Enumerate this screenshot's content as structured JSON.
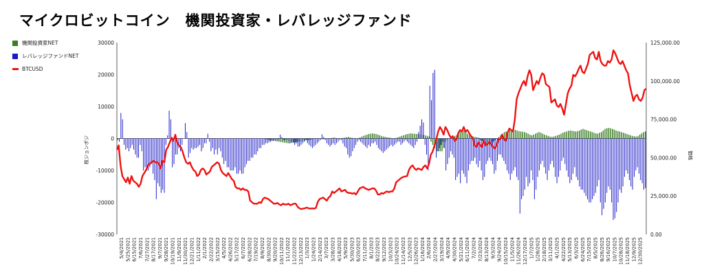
{
  "title": "マイクロビットコイン　機関投資家・レバレッジファンド",
  "colors": {
    "inst": "#3a7d22",
    "lev": "#1919c8",
    "price": "#ee1111",
    "axis": "#333333",
    "grid": "#cccccc"
  },
  "legend": {
    "inst": "機関投資家NET",
    "lev": "レバレッジファンドNET",
    "price": "BTCUSD"
  },
  "chart_data": {
    "type": "bar",
    "ylabel": "枚ジョンポジ",
    "y2label": "価格",
    "ylim": [
      -30000,
      30000
    ],
    "y2lim": [
      0,
      125000
    ],
    "yticks": [
      "30000",
      "20000",
      "10000",
      "0",
      "-10000",
      "-20000",
      "-30000"
    ],
    "y2ticks": [
      "125,000.00",
      "100,000.00",
      "75,000.00",
      "50,000.00",
      "25,000.00",
      "0.00"
    ],
    "x_tick_labels": [
      "5/4/2021",
      "5/25/2021",
      "6/15/2021",
      "7/6/2021",
      "7/27/2021",
      "8/17/2021",
      "9/7/2021",
      "9/28/2021",
      "10/19/2021",
      "11/9/2021",
      "11/30/2021",
      "12/21/2021",
      "1/11/2022",
      "2/1/2022",
      "2/22/2022",
      "3/15/2022",
      "4/5/2022",
      "4/26/2022",
      "5/17/2022",
      "6/7/2022",
      "6/28/2022",
      "7/19/2022",
      "8/9/2022",
      "8/30/2022",
      "9/20/2022",
      "10/11/2022",
      "11/1/2022",
      "11/22/2022",
      "12/13/2022",
      "1/3/2023",
      "1/24/2023",
      "2/14/2023",
      "3/7/2023",
      "3/28/2023",
      "4/18/2023",
      "5/9/2023",
      "5/30/2023",
      "6/20/2023",
      "7/11/2023",
      "8/1/2023",
      "8/22/2023",
      "9/12/2023",
      "10/3/2023",
      "10/24/2023",
      "11/14/2023",
      "12/5/2023",
      "12/26/2023",
      "1/16/2024",
      "2/6/2024",
      "2/27/2024",
      "3/19/2024",
      "4/9/2024",
      "4/30/2024",
      "5/21/2024",
      "6/11/2024",
      "7/2/2024",
      "7/23/2024",
      "8/13/2024",
      "9/3/2024",
      "9/24/2024",
      "10/15/2024",
      "11/5/2024",
      "11/26/2024",
      "12/17/2024",
      "1/7/2025",
      "1/28/2025",
      "2/18/2025",
      "3/11/2025",
      "4/1/2025",
      "4/22/2025",
      "5/13/2025",
      "6/3/2025",
      "6/24/2025",
      "7/15/2025",
      "8/5/2025",
      "8/26/2025",
      "9/16/2025",
      "10/7/2025",
      "10/28/2025",
      "11/18/2025",
      "12/9/2025",
      "12/30/2025"
    ],
    "series": [
      {
        "name": "機関投資家NET",
        "axis": "left",
        "values": [
          0,
          0,
          0,
          0,
          0,
          0,
          0,
          0,
          0,
          0,
          0,
          0,
          0,
          0,
          0,
          0,
          0,
          0,
          0,
          0,
          0,
          0,
          0,
          0,
          0,
          0,
          0,
          0,
          0,
          0,
          0,
          0,
          0,
          0,
          0,
          0,
          0,
          0,
          0,
          0,
          0,
          0,
          0,
          0,
          0,
          0,
          0,
          0,
          0,
          0,
          0,
          0,
          0,
          0,
          0,
          0,
          0,
          0,
          0,
          0,
          0,
          0,
          0,
          0,
          0,
          0,
          0,
          0,
          0,
          0,
          0,
          0,
          0,
          0,
          0,
          0,
          0,
          0,
          0,
          0,
          -200,
          -300,
          -400,
          -500,
          -600,
          -700,
          -800,
          -900,
          -1000,
          -1100,
          -1200,
          -1300,
          -1400,
          -1500,
          -1500,
          -1400,
          -1300,
          -1200,
          -1100,
          -1000,
          -900,
          -800,
          -700,
          -600,
          -500,
          -400,
          -300,
          -200,
          -100,
          0,
          -100,
          -200,
          -300,
          -200,
          -100,
          0,
          100,
          200,
          300,
          200,
          100,
          0,
          100,
          200,
          300,
          400,
          500,
          300,
          200,
          100,
          0,
          100,
          300,
          500,
          800,
          1000,
          1200,
          1400,
          1500,
          1600,
          1500,
          1400,
          1200,
          1000,
          800,
          600,
          500,
          400,
          300,
          200,
          100,
          0,
          200,
          400,
          600,
          800,
          1000,
          1200,
          1400,
          1500,
          1600,
          1500,
          1500,
          1400,
          1400,
          1300,
          1200,
          1100,
          1000,
          800,
          600,
          -1000,
          -2000,
          -3000,
          -4000,
          -4000,
          -4000,
          -4000,
          -3000,
          -1000,
          -500,
          0,
          200,
          500,
          800,
          1000,
          1500,
          2000,
          2500,
          2500,
          2000,
          1500,
          1000,
          800,
          600,
          500,
          400,
          300,
          -500,
          -800,
          -1000,
          -1500,
          -2000,
          -2000,
          -1500,
          -1000,
          -500,
          0,
          500,
          1000,
          1500,
          2000,
          2200,
          2400,
          2500,
          2600,
          2700,
          2700,
          2500,
          2300,
          2200,
          2100,
          2000,
          1800,
          1500,
          1200,
          1000,
          1200,
          1500,
          1800,
          2000,
          1800,
          1500,
          1200,
          1000,
          800,
          600,
          500,
          600,
          800,
          1000,
          1200,
          1500,
          1800,
          2000,
          2200,
          2400,
          2500,
          2400,
          2300,
          2200,
          2300,
          2500,
          2800,
          3000,
          2800,
          2600,
          2400,
          2200,
          2000,
          1800,
          1600,
          1500,
          1800,
          2000,
          2500,
          3000,
          3200,
          3300,
          3200,
          3000,
          2800,
          2500,
          2300,
          2200,
          2000,
          1800,
          1600,
          1400,
          1200,
          1000,
          800,
          700,
          600,
          800,
          1200,
          1600,
          2000,
          2200
        ]
      },
      {
        "name": "レバレッジファンドNET",
        "axis": "left",
        "values": [
          -500,
          -1000,
          8000,
          6000,
          -2000,
          -3500,
          -3000,
          -4000,
          -3000,
          -2000,
          -3500,
          -5000,
          -6000,
          -6000,
          -2000,
          -4000,
          -10000,
          -9000,
          -10000,
          -10000,
          -9000,
          -8000,
          -11000,
          -13000,
          -19000,
          -14000,
          -15000,
          -17000,
          -16000,
          -17000,
          -2000,
          1000,
          8700,
          6000,
          -9000,
          -8000,
          -5000,
          -5000,
          -3000,
          -4000,
          -2000,
          0,
          4800,
          2000,
          -6000,
          -4500,
          -3000,
          -3500,
          -3000,
          -3000,
          -2500,
          -2000,
          -4000,
          -3000,
          -1500,
          -1500,
          1500,
          -1000,
          -4000,
          -3000,
          -5000,
          -3500,
          -5000,
          -3000,
          -4000,
          -6000,
          -8000,
          -7000,
          -9000,
          -9000,
          -10000,
          -10000,
          -10000,
          -9000,
          -11000,
          -11000,
          -10000,
          -11000,
          -11000,
          -9000,
          -8000,
          -7000,
          -7000,
          -6000,
          -6000,
          -5000,
          -5000,
          -4000,
          -3000,
          -3000,
          -2000,
          -2000,
          -1500,
          -1500,
          -1200,
          -1000,
          -800,
          -700,
          -600,
          -600,
          -500,
          1200,
          500,
          -500,
          -500,
          -500,
          -800,
          -1500,
          -1000,
          -1200,
          -2000,
          -1500,
          -2500,
          -2500,
          -2000,
          -1500,
          -1000,
          -500,
          -1500,
          -2000,
          -2500,
          -3000,
          -2500,
          -2000,
          -1500,
          -1000,
          -500,
          1300,
          500,
          -500,
          -1500,
          -2000,
          -2500,
          -2000,
          -1500,
          -2000,
          -1500,
          -1000,
          -500,
          -500,
          -1500,
          -2500,
          -3000,
          -5000,
          -6000,
          -5500,
          -4000,
          -3000,
          -2000,
          -1000,
          -500,
          -1000,
          -1500,
          -2000,
          -2500,
          -3000,
          -2000,
          -2500,
          -1500,
          -1500,
          -1000,
          -2000,
          -3000,
          -3500,
          -4000,
          -4500,
          -4000,
          -3500,
          -3000,
          -2500,
          -2000,
          -2500,
          -2000,
          -1500,
          -1000,
          -1000,
          -2000,
          -1500,
          -1000,
          -500,
          -1000,
          -1500,
          -2000,
          -2500,
          -3000,
          -2000,
          -1000,
          2000,
          4000,
          6000,
          5000,
          -2000,
          -5000,
          -10000,
          16500,
          12000,
          20500,
          21500,
          -6000,
          -4000,
          -3000,
          -2000,
          -1000,
          -3000,
          -10000,
          -8000,
          -6000,
          -4000,
          -5000,
          -6000,
          -13000,
          -12000,
          -11000,
          -14000,
          -10000,
          -11000,
          -12000,
          -14000,
          -10000,
          -8000,
          -7000,
          -7000,
          -6000,
          -8000,
          -9000,
          -7000,
          -10000,
          -13000,
          -12000,
          -8000,
          -7000,
          -6000,
          -7000,
          -8000,
          -11000,
          -10000,
          -7000,
          -5000,
          -5000,
          -6000,
          -7000,
          -8000,
          -10000,
          -11000,
          -13000,
          -11000,
          -10000,
          -9000,
          -12000,
          -13000,
          -23500,
          -19000,
          -18000,
          -16000,
          -12000,
          -15000,
          -14000,
          -10000,
          -13000,
          -19000,
          -16000,
          -12000,
          -10000,
          -8000,
          -7000,
          -9000,
          -11000,
          -13000,
          -10000,
          -8000,
          -7000,
          -9000,
          -12000,
          -14000,
          -12000,
          -10000,
          -7000,
          -6000,
          -8000,
          -10000,
          -12000,
          -14000,
          -13000,
          -11000,
          -9000,
          -12000,
          -13000,
          -15000,
          -16000,
          -16000,
          -17000,
          -18000,
          -19000,
          -20000,
          -20000,
          -19000,
          -18000,
          -17000,
          -15000,
          -13000,
          -20000,
          -24000,
          -22000,
          -20000,
          -17000,
          -15000,
          -16000,
          -20000,
          -25500,
          -25000,
          -23000,
          -20000,
          -16000,
          -17000,
          -15000,
          -12000,
          -10000,
          -11000,
          -13000,
          -15000,
          -16000,
          -12000,
          -10000,
          -9000,
          -11000,
          -13000,
          -14000,
          -16000,
          -15500
        ]
      },
      {
        "name": "BTCUSD",
        "axis": "right",
        "values": [
          55000,
          58000,
          45000,
          38000,
          36000,
          34000,
          37000,
          33000,
          38000,
          35000,
          34000,
          33000,
          31000,
          33000,
          38000,
          40000,
          42000,
          45000,
          46000,
          47000,
          48000,
          47000,
          47000,
          46000,
          43000,
          48000,
          47000,
          55000,
          57000,
          60000,
          63000,
          61000,
          65000,
          60000,
          58000,
          57000,
          54000,
          50000,
          47000,
          46000,
          47000,
          44000,
          42000,
          41000,
          38000,
          39000,
          42000,
          43000,
          42000,
          39000,
          40000,
          41000,
          44000,
          45000,
          46000,
          47000,
          46000,
          42000,
          40000,
          39000,
          38000,
          40000,
          38000,
          36000,
          35000,
          31000,
          30000,
          30000,
          29000,
          30000,
          29000,
          29000,
          28000,
          22000,
          21000,
          20000,
          20000,
          20000,
          21000,
          20500,
          23000,
          24000,
          23500,
          23000,
          22000,
          21000,
          20000,
          20000,
          20500,
          19500,
          19000,
          20000,
          19500,
          19500,
          20000,
          19000,
          19500,
          20000,
          20000,
          18000,
          17000,
          16500,
          16800,
          17000,
          17500,
          17000,
          16800,
          17000,
          16800,
          17200,
          21000,
          23000,
          23500,
          24000,
          23000,
          22000,
          24000,
          25000,
          28000,
          27000,
          28000,
          29000,
          30000,
          28000,
          28500,
          29000,
          27500,
          27000,
          27000,
          26500,
          27000,
          26000,
          28000,
          30000,
          30500,
          31000,
          30000,
          29500,
          29000,
          29500,
          30000,
          30000,
          28500,
          26000,
          26000,
          27000,
          26500,
          27500,
          28000,
          27500,
          28000,
          28000,
          30000,
          34000,
          35000,
          36000,
          37000,
          37500,
          37800,
          38000,
          42000,
          44000,
          45000,
          43000,
          42000,
          43000,
          42500,
          42000,
          44000,
          45000,
          43000,
          46000,
          52000,
          54000,
          58000,
          62000,
          67000,
          70000,
          68000,
          65000,
          70000,
          68000,
          65000,
          63000,
          64000,
          61000,
          62000,
          66000,
          68000,
          67000,
          70000,
          67000,
          68000,
          66000,
          64000,
          63000,
          58000,
          57000,
          60000,
          58000,
          57000,
          61000,
          58000,
          59000,
          60000,
          59000,
          57000,
          56000,
          58000,
          62000,
          62000,
          65000,
          62000,
          61000,
          66000,
          69000,
          68000,
          67000,
          75000,
          88000,
          92000,
          95000,
          98000,
          100000,
          97000,
          103000,
          107000,
          104000,
          94000,
          97000,
          100000,
          98000,
          102000,
          105000,
          104000,
          98000,
          97000,
          96000,
          86000,
          87000,
          88000,
          84000,
          83000,
          85000,
          82000,
          78000,
          85000,
          92000,
          95000,
          97000,
          104000,
          103000,
          105000,
          108000,
          110000,
          106000,
          105000,
          108000,
          111000,
          117000,
          118000,
          119000,
          115000,
          114000,
          119000,
          113000,
          111000,
          110000,
          110000,
          113000,
          112000,
          114000,
          120000,
          118000,
          115000,
          112000,
          111000,
          113000,
          110000,
          107000,
          105000,
          97000,
          92000,
          87000,
          90000,
          91000,
          88000,
          87000,
          89000,
          94000,
          95000
        ]
      }
    ]
  }
}
